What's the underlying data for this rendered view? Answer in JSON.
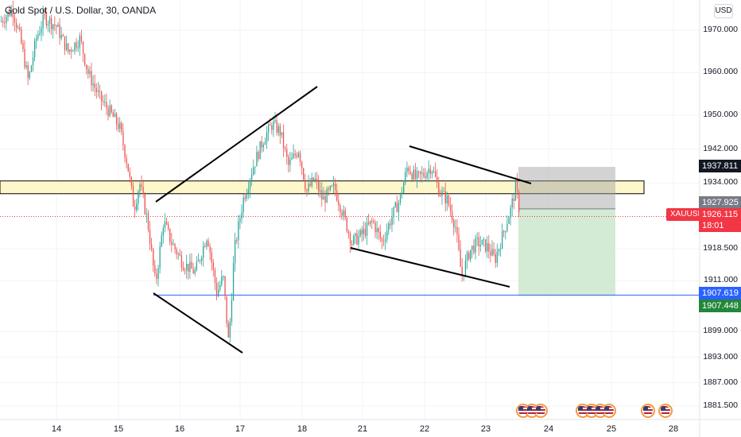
{
  "header": {
    "symbol_title": "Gold Spot / U.S. Dollar, 30, OANDA",
    "currency_button": "USD"
  },
  "price_axis": {
    "labels": [
      "1970.000",
      "1960.000",
      "1950.000",
      "1942.000",
      "1934.000",
      "1918.500",
      "1911.000",
      "1899.000",
      "1893.000",
      "1887.000",
      "1881.500"
    ]
  },
  "price_tags": {
    "stop_level": "1937.811",
    "entry_level": "1927.925",
    "last_price": "1926.115",
    "countdown": "18:01",
    "symbol": "XAUUSD",
    "support_level": "1907.619",
    "target_level": "1907.448"
  },
  "time_axis": {
    "labels": [
      "14",
      "15",
      "16",
      "17",
      "18",
      "21",
      "22",
      "23",
      "24",
      "25",
      "28"
    ]
  },
  "colors": {
    "bull": "#26a69a",
    "bear": "#ef5350",
    "zone_fill": "#fff7cc",
    "support_line": "#2962ff",
    "stop_zone": "#9e9e9e",
    "target_zone": "#c8e6c9",
    "last_price_tag": "#f23645",
    "target_tag": "#22873a",
    "stop_tag": "#131722",
    "entry_tag": "#787b86"
  },
  "icons": {
    "event_flag": "us-flag-icon"
  },
  "chart_data": {
    "type": "candlestick",
    "instrument": "XAUUSD",
    "timeframe": "30",
    "ylim": [
      1878,
      1975
    ],
    "drawings": {
      "horizontal_zone": [
        1931.5,
        1934.5
      ],
      "support_line": 1907.619,
      "short_position": {
        "stop": 1937.811,
        "entry": 1927.925,
        "target": 1907.448
      }
    },
    "price_path": [
      [
        0,
        1972
      ],
      [
        15,
        1975
      ],
      [
        25,
        1968
      ],
      [
        35,
        1958
      ],
      [
        45,
        1968
      ],
      [
        55,
        1973
      ],
      [
        70,
        1971
      ],
      [
        85,
        1965
      ],
      [
        100,
        1968
      ],
      [
        110,
        1960
      ],
      [
        125,
        1954
      ],
      [
        140,
        1950
      ],
      [
        150,
        1947
      ],
      [
        160,
        1938
      ],
      [
        168,
        1928
      ],
      [
        175,
        1934
      ],
      [
        185,
        1925
      ],
      [
        195,
        1910
      ],
      [
        205,
        1925
      ],
      [
        215,
        1920
      ],
      [
        230,
        1915
      ],
      [
        245,
        1913
      ],
      [
        260,
        1922
      ],
      [
        272,
        1908
      ],
      [
        280,
        1912
      ],
      [
        287,
        1896
      ],
      [
        294,
        1918
      ],
      [
        305,
        1930
      ],
      [
        318,
        1938
      ],
      [
        330,
        1944
      ],
      [
        342,
        1948
      ],
      [
        352,
        1946
      ],
      [
        362,
        1938
      ],
      [
        375,
        1942
      ],
      [
        385,
        1932
      ],
      [
        395,
        1935
      ],
      [
        405,
        1930
      ],
      [
        420,
        1933
      ],
      [
        432,
        1926
      ],
      [
        442,
        1920
      ],
      [
        455,
        1922
      ],
      [
        468,
        1925
      ],
      [
        480,
        1920
      ],
      [
        492,
        1926
      ],
      [
        502,
        1930
      ],
      [
        512,
        1938
      ],
      [
        522,
        1935
      ],
      [
        532,
        1936
      ],
      [
        542,
        1938
      ],
      [
        552,
        1932
      ],
      [
        562,
        1930
      ],
      [
        572,
        1924
      ],
      [
        580,
        1912
      ],
      [
        590,
        1918
      ],
      [
        600,
        1920
      ],
      [
        612,
        1919
      ],
      [
        622,
        1916
      ],
      [
        632,
        1922
      ],
      [
        642,
        1928
      ],
      [
        648,
        1933
      ],
      [
        654,
        1926
      ]
    ]
  }
}
